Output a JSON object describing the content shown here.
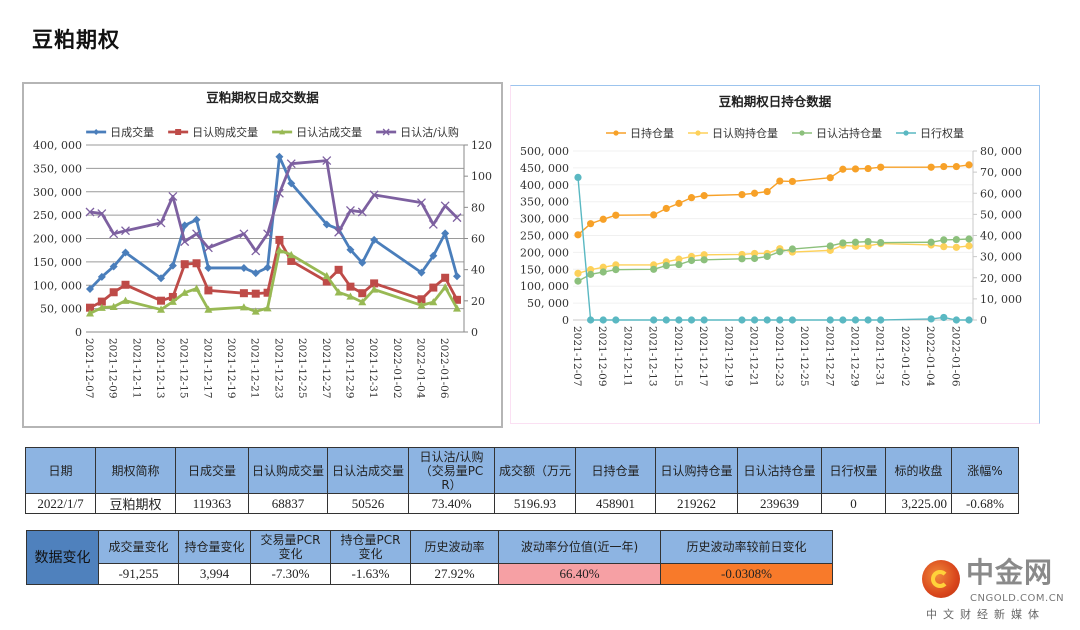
{
  "page": {
    "title": "豆粕期权"
  },
  "chart_data": [
    {
      "type": "line",
      "title": "豆粕期权日成交数据",
      "x": [
        "2021-12-07",
        "2021-12-08",
        "2021-12-09",
        "2021-12-10",
        "2021-12-13",
        "2021-12-14",
        "2021-12-15",
        "2021-12-16",
        "2021-12-17",
        "2021-12-20",
        "2021-12-21",
        "2021-12-22",
        "2021-12-23",
        "2021-12-24",
        "2021-12-27",
        "2021-12-28",
        "2021-12-29",
        "2021-12-30",
        "2021-12-31",
        "2022-01-04",
        "2022-01-05",
        "2022-01-06",
        "2022-01-07"
      ],
      "x_ticks": [
        "2021-12-07",
        "2021-12-09",
        "2021-12-11",
        "2021-12-13",
        "2021-12-15",
        "2021-12-17",
        "2021-12-19",
        "2021-12-21",
        "2021-12-23",
        "2021-12-25",
        "2021-12-27",
        "2021-12-29",
        "2021-12-31",
        "2022-01-02",
        "2022-01-04",
        "2022-01-06"
      ],
      "y_left": {
        "min": 0,
        "max": 400000,
        "ticks": [
          "0",
          "50, 000",
          "100, 000",
          "150, 000",
          "200, 000",
          "250, 000",
          "300, 000",
          "350, 000",
          "400, 000"
        ]
      },
      "y_right": {
        "min": 0,
        "max": 120,
        "ticks": [
          "0",
          "20",
          "40",
          "60",
          "80",
          "100",
          "120"
        ]
      },
      "grid": true,
      "legend_position": "top",
      "series": [
        {
          "name": "日成交量",
          "axis": "left",
          "color": "#4a7ebb",
          "marker": "diamond",
          "values": [
            92000,
            118000,
            140000,
            170000,
            115000,
            142000,
            228000,
            240000,
            137000,
            137000,
            126000,
            138000,
            375000,
            318000,
            230000,
            220000,
            176000,
            148000,
            197000,
            127000,
            163000,
            211000,
            119363
          ]
        },
        {
          "name": "日认购成交量",
          "axis": "left",
          "color": "#be4b48",
          "marker": "square",
          "values": [
            52000,
            65000,
            85000,
            101000,
            67000,
            75000,
            145000,
            147000,
            89000,
            83000,
            82000,
            84000,
            197000,
            152000,
            108000,
            133000,
            97000,
            83000,
            104000,
            70000,
            95000,
            116000,
            68837
          ]
        },
        {
          "name": "日认沽成交量",
          "axis": "left",
          "color": "#98b954",
          "marker": "triangle",
          "values": [
            40000,
            52000,
            54000,
            67000,
            48000,
            65000,
            84000,
            93000,
            48000,
            53000,
            44000,
            51000,
            175000,
            165000,
            120000,
            85000,
            76000,
            64000,
            91000,
            57000,
            64000,
            96000,
            50526
          ]
        },
        {
          "name": "日认沽/认购",
          "axis": "right",
          "color": "#7d60a0",
          "marker": "x",
          "values": [
            77,
            76,
            63,
            65,
            70,
            87,
            58,
            63,
            54,
            63,
            52,
            63,
            89,
            108,
            110,
            64,
            78,
            77,
            88,
            83,
            69,
            81,
            73.4
          ]
        }
      ]
    },
    {
      "type": "line",
      "title": "豆粕期权日持仓数据",
      "x": [
        "2021-12-07",
        "2021-12-08",
        "2021-12-09",
        "2021-12-10",
        "2021-12-13",
        "2021-12-14",
        "2021-12-15",
        "2021-12-16",
        "2021-12-17",
        "2021-12-20",
        "2021-12-21",
        "2021-12-22",
        "2021-12-23",
        "2021-12-24",
        "2021-12-27",
        "2021-12-28",
        "2021-12-29",
        "2021-12-30",
        "2021-12-31",
        "2022-01-04",
        "2022-01-05",
        "2022-01-06",
        "2022-01-07"
      ],
      "x_ticks": [
        "2021-12-07",
        "2021-12-09",
        "2021-12-11",
        "2021-12-13",
        "2021-12-15",
        "2021-12-17",
        "2021-12-19",
        "2021-12-21",
        "2021-12-23",
        "2021-12-25",
        "2021-12-27",
        "2021-12-29",
        "2021-12-31",
        "2022-01-02",
        "2022-01-04",
        "2022-01-06"
      ],
      "y_left": {
        "min": 0,
        "max": 500000,
        "ticks": [
          "0",
          "50, 000",
          "100, 000",
          "150, 000",
          "200, 000",
          "250, 000",
          "300, 000",
          "350, 000",
          "400, 000",
          "450, 000",
          "500, 000"
        ]
      },
      "y_right": {
        "min": 0,
        "max": 80000,
        "ticks": [
          "0",
          "10, 000",
          "20, 000",
          "30, 000",
          "40, 000",
          "50, 000",
          "60, 000",
          "70, 000",
          "80, 000"
        ]
      },
      "grid": true,
      "legend_position": "top",
      "series": [
        {
          "name": "日持仓量",
          "axis": "left",
          "color": "#f7a128",
          "marker": "circle",
          "values": [
            252000,
            285000,
            298000,
            310000,
            311000,
            330000,
            345000,
            362000,
            368000,
            371000,
            375000,
            380000,
            411000,
            410000,
            421000,
            446000,
            447000,
            448000,
            452000,
            452000,
            454000,
            454000,
            458901
          ]
        },
        {
          "name": "日认购持仓量",
          "axis": "left",
          "color": "#fdd15a",
          "marker": "circle",
          "values": [
            138000,
            149000,
            156000,
            163000,
            163000,
            172000,
            180000,
            188000,
            193000,
            194000,
            197000,
            197000,
            211000,
            201000,
            206000,
            221000,
            218000,
            219000,
            226000,
            222000,
            217000,
            215000,
            219262
          ]
        },
        {
          "name": "日认沽持仓量",
          "axis": "left",
          "color": "#8cc07c",
          "marker": "circle",
          "values": [
            115000,
            135000,
            142000,
            149000,
            150000,
            161000,
            164000,
            176000,
            178000,
            181000,
            182000,
            188000,
            202000,
            210000,
            219000,
            228000,
            230000,
            232000,
            229000,
            230000,
            237000,
            238000,
            239639
          ]
        },
        {
          "name": "日行权量",
          "axis": "right",
          "color": "#5ab8c2",
          "marker": "circle",
          "values": [
            67500,
            0,
            0,
            0,
            0,
            0,
            0,
            0,
            0,
            0,
            0,
            0,
            0,
            0,
            0,
            0,
            0,
            0,
            0,
            500,
            1200,
            0,
            0
          ]
        }
      ]
    }
  ],
  "summary_table": {
    "headers": [
      "日期",
      "期权简称",
      "日成交量",
      "日认购成交量",
      "日认沽成交量",
      "日认沽/认购（交易量PCR）",
      "成交额（万元",
      "日持仓量",
      "日认购持仓量",
      "日认沽持仓量",
      "日行权量",
      "标的收盘",
      "涨幅%"
    ],
    "row": [
      "2022/1/7",
      "豆粕期权",
      "119363",
      "68837",
      "50526",
      "73.40%",
      "5196.93",
      "458901",
      "219262",
      "239639",
      "0",
      "3,225.00",
      "-0.68%"
    ]
  },
  "change_table": {
    "row_header": "数据变化",
    "headers": [
      "成交量变化",
      "持仓量变化",
      "交易量PCR变化",
      "持仓量PCR变化",
      "历史波动率",
      "波动率分位值(近一年)",
      "历史波动率较前日变化"
    ],
    "row": [
      "-91,255",
      "3,994",
      "-7.30%",
      "-1.63%",
      "27.92%",
      "66.40%",
      "-0.0308%"
    ],
    "highlight_colors": {
      "percentile": "#f6a0a4",
      "hv_change": "#f87a2a",
      "row_header": "#4f81bd",
      "header": "#8db4e2"
    }
  },
  "logo": {
    "name": "中金网",
    "domain": "CNGOLD.COM.CN",
    "slogan": "中文财经新媒体"
  }
}
